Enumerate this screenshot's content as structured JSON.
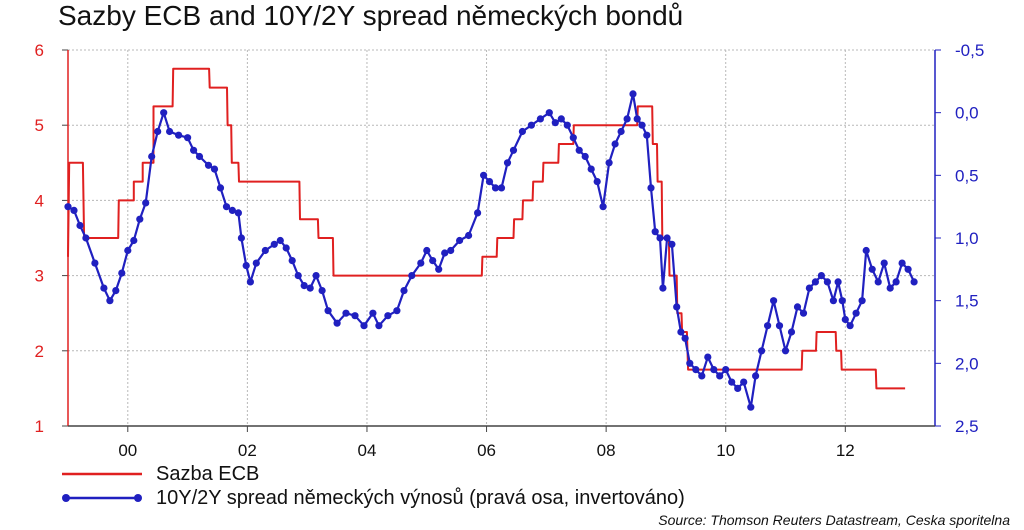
{
  "chart_data": {
    "type": "line",
    "title": "Sazby ECB and 10Y/2Y spread německých bondů",
    "source": "Source: Thomson Reuters Datastream, Ceska sporitelna",
    "x_ticks": [
      {
        "year": 2000,
        "label": "00"
      },
      {
        "year": 2002,
        "label": "02"
      },
      {
        "year": 2004,
        "label": "04"
      },
      {
        "year": 2006,
        "label": "06"
      },
      {
        "year": 2008,
        "label": "08"
      },
      {
        "year": 2010,
        "label": "10"
      },
      {
        "year": 2012,
        "label": "12"
      }
    ],
    "xlim": [
      1999.0,
      2013.5
    ],
    "left_axis": {
      "ticks": [
        "1",
        "2",
        "3",
        "4",
        "5",
        "6"
      ],
      "ylim": [
        1,
        6
      ],
      "color": "#e02020"
    },
    "right_axis": {
      "ticks": [
        "-0,5",
        "0,0",
        "0,5",
        "1,0",
        "1,5",
        "2,0",
        "2,5"
      ],
      "ylim": [
        -0.5,
        2.5
      ],
      "inverted": true,
      "color": "#2020c0"
    },
    "grid": true,
    "legend_position": "bottom",
    "series": [
      {
        "name": "Sazba ECB",
        "axis": "left",
        "color": "#e02020",
        "step": true,
        "points": [
          [
            1999.0,
            3.25
          ],
          [
            1999.02,
            4.5
          ],
          [
            1999.25,
            4.5
          ],
          [
            1999.27,
            3.5
          ],
          [
            1999.84,
            3.5
          ],
          [
            1999.85,
            4.0
          ],
          [
            2000.1,
            4.0
          ],
          [
            2000.1,
            4.25
          ],
          [
            2000.25,
            4.25
          ],
          [
            2000.25,
            4.5
          ],
          [
            2000.43,
            4.5
          ],
          [
            2000.43,
            5.25
          ],
          [
            2000.75,
            5.25
          ],
          [
            2000.76,
            5.75
          ],
          [
            2001.36,
            5.75
          ],
          [
            2001.37,
            5.5
          ],
          [
            2001.66,
            5.5
          ],
          [
            2001.67,
            5.0
          ],
          [
            2001.73,
            5.0
          ],
          [
            2001.74,
            4.5
          ],
          [
            2001.85,
            4.5
          ],
          [
            2001.86,
            4.25
          ],
          [
            2002.87,
            4.25
          ],
          [
            2002.88,
            3.75
          ],
          [
            2003.18,
            3.75
          ],
          [
            2003.19,
            3.5
          ],
          [
            2003.43,
            3.5
          ],
          [
            2003.44,
            3.0
          ],
          [
            2005.92,
            3.0
          ],
          [
            2005.93,
            3.25
          ],
          [
            2006.17,
            3.25
          ],
          [
            2006.18,
            3.5
          ],
          [
            2006.45,
            3.5
          ],
          [
            2006.46,
            3.75
          ],
          [
            2006.6,
            3.75
          ],
          [
            2006.61,
            4.0
          ],
          [
            2006.77,
            4.0
          ],
          [
            2006.78,
            4.25
          ],
          [
            2006.94,
            4.25
          ],
          [
            2006.95,
            4.5
          ],
          [
            2007.2,
            4.5
          ],
          [
            2007.21,
            4.75
          ],
          [
            2007.45,
            4.75
          ],
          [
            2007.46,
            5.0
          ],
          [
            2008.52,
            5.0
          ],
          [
            2008.53,
            5.25
          ],
          [
            2008.77,
            5.25
          ],
          [
            2008.78,
            4.75
          ],
          [
            2008.85,
            4.75
          ],
          [
            2008.86,
            4.25
          ],
          [
            2008.93,
            4.25
          ],
          [
            2008.94,
            3.5
          ],
          [
            2009.05,
            3.5
          ],
          [
            2009.06,
            3.0
          ],
          [
            2009.18,
            3.0
          ],
          [
            2009.19,
            2.5
          ],
          [
            2009.26,
            2.5
          ],
          [
            2009.27,
            2.25
          ],
          [
            2009.35,
            2.25
          ],
          [
            2009.36,
            2.0
          ],
          [
            2009.37,
            1.75
          ],
          [
            2011.27,
            1.75
          ],
          [
            2011.28,
            2.0
          ],
          [
            2011.51,
            2.0
          ],
          [
            2011.52,
            2.25
          ],
          [
            2011.84,
            2.25
          ],
          [
            2011.85,
            2.0
          ],
          [
            2011.93,
            2.0
          ],
          [
            2011.94,
            1.75
          ],
          [
            2012.51,
            1.75
          ],
          [
            2012.52,
            1.5
          ],
          [
            2013.0,
            1.5
          ]
        ]
      },
      {
        "name": "10Y/2Y spread německých výnosů (pravá osa, invertováno)",
        "axis": "right",
        "color": "#2020c0",
        "step": false,
        "points": [
          [
            1999.0,
            0.75
          ],
          [
            1999.1,
            0.78
          ],
          [
            1999.2,
            0.9
          ],
          [
            1999.3,
            1.0
          ],
          [
            1999.45,
            1.2
          ],
          [
            1999.6,
            1.4
          ],
          [
            1999.7,
            1.5
          ],
          [
            1999.8,
            1.42
          ],
          [
            1999.9,
            1.28
          ],
          [
            2000.0,
            1.1
          ],
          [
            2000.1,
            1.02
          ],
          [
            2000.2,
            0.85
          ],
          [
            2000.3,
            0.72
          ],
          [
            2000.4,
            0.35
          ],
          [
            2000.5,
            0.15
          ],
          [
            2000.6,
            0.0
          ],
          [
            2000.7,
            0.15
          ],
          [
            2000.85,
            0.18
          ],
          [
            2001.0,
            0.2
          ],
          [
            2001.1,
            0.3
          ],
          [
            2001.2,
            0.35
          ],
          [
            2001.35,
            0.42
          ],
          [
            2001.45,
            0.45
          ],
          [
            2001.55,
            0.6
          ],
          [
            2001.65,
            0.75
          ],
          [
            2001.75,
            0.78
          ],
          [
            2001.85,
            0.8
          ],
          [
            2001.9,
            1.0
          ],
          [
            2001.98,
            1.22
          ],
          [
            2002.05,
            1.35
          ],
          [
            2002.15,
            1.2
          ],
          [
            2002.3,
            1.1
          ],
          [
            2002.45,
            1.05
          ],
          [
            2002.55,
            1.02
          ],
          [
            2002.65,
            1.08
          ],
          [
            2002.75,
            1.18
          ],
          [
            2002.85,
            1.3
          ],
          [
            2002.95,
            1.38
          ],
          [
            2003.05,
            1.4
          ],
          [
            2003.15,
            1.3
          ],
          [
            2003.25,
            1.42
          ],
          [
            2003.35,
            1.58
          ],
          [
            2003.5,
            1.68
          ],
          [
            2003.65,
            1.6
          ],
          [
            2003.8,
            1.62
          ],
          [
            2003.95,
            1.7
          ],
          [
            2004.1,
            1.6
          ],
          [
            2004.2,
            1.7
          ],
          [
            2004.35,
            1.62
          ],
          [
            2004.5,
            1.58
          ],
          [
            2004.62,
            1.42
          ],
          [
            2004.75,
            1.3
          ],
          [
            2004.9,
            1.2
          ],
          [
            2005.0,
            1.1
          ],
          [
            2005.1,
            1.18
          ],
          [
            2005.2,
            1.25
          ],
          [
            2005.3,
            1.12
          ],
          [
            2005.4,
            1.1
          ],
          [
            2005.55,
            1.02
          ],
          [
            2005.7,
            0.98
          ],
          [
            2005.85,
            0.8
          ],
          [
            2005.95,
            0.5
          ],
          [
            2006.05,
            0.55
          ],
          [
            2006.15,
            0.6
          ],
          [
            2006.25,
            0.6
          ],
          [
            2006.35,
            0.4
          ],
          [
            2006.45,
            0.3
          ],
          [
            2006.6,
            0.15
          ],
          [
            2006.75,
            0.1
          ],
          [
            2006.9,
            0.05
          ],
          [
            2007.05,
            0.0
          ],
          [
            2007.15,
            0.08
          ],
          [
            2007.25,
            0.05
          ],
          [
            2007.35,
            0.1
          ],
          [
            2007.45,
            0.2
          ],
          [
            2007.55,
            0.3
          ],
          [
            2007.65,
            0.35
          ],
          [
            2007.75,
            0.45
          ],
          [
            2007.85,
            0.55
          ],
          [
            2007.95,
            0.75
          ],
          [
            2008.05,
            0.4
          ],
          [
            2008.15,
            0.25
          ],
          [
            2008.25,
            0.15
          ],
          [
            2008.35,
            0.05
          ],
          [
            2008.45,
            -0.15
          ],
          [
            2008.52,
            0.05
          ],
          [
            2008.6,
            0.1
          ],
          [
            2008.68,
            0.18
          ],
          [
            2008.75,
            0.6
          ],
          [
            2008.82,
            0.95
          ],
          [
            2008.9,
            1.0
          ],
          [
            2008.95,
            1.4
          ],
          [
            2009.02,
            1.0
          ],
          [
            2009.1,
            1.05
          ],
          [
            2009.18,
            1.55
          ],
          [
            2009.25,
            1.75
          ],
          [
            2009.32,
            1.8
          ],
          [
            2009.4,
            2.0
          ],
          [
            2009.5,
            2.05
          ],
          [
            2009.6,
            2.1
          ],
          [
            2009.7,
            1.95
          ],
          [
            2009.8,
            2.05
          ],
          [
            2009.9,
            2.1
          ],
          [
            2010.0,
            2.05
          ],
          [
            2010.1,
            2.15
          ],
          [
            2010.2,
            2.2
          ],
          [
            2010.3,
            2.15
          ],
          [
            2010.42,
            2.35
          ],
          [
            2010.5,
            2.1
          ],
          [
            2010.6,
            1.9
          ],
          [
            2010.7,
            1.7
          ],
          [
            2010.8,
            1.5
          ],
          [
            2010.9,
            1.7
          ],
          [
            2011.0,
            1.9
          ],
          [
            2011.1,
            1.75
          ],
          [
            2011.2,
            1.55
          ],
          [
            2011.3,
            1.6
          ],
          [
            2011.4,
            1.4
          ],
          [
            2011.5,
            1.35
          ],
          [
            2011.6,
            1.3
          ],
          [
            2011.7,
            1.35
          ],
          [
            2011.8,
            1.5
          ],
          [
            2011.88,
            1.35
          ],
          [
            2011.95,
            1.5
          ],
          [
            2012.0,
            1.65
          ],
          [
            2012.08,
            1.7
          ],
          [
            2012.18,
            1.6
          ],
          [
            2012.28,
            1.5
          ],
          [
            2012.35,
            1.1
          ],
          [
            2012.45,
            1.25
          ],
          [
            2012.55,
            1.35
          ],
          [
            2012.65,
            1.2
          ],
          [
            2012.75,
            1.4
          ],
          [
            2012.85,
            1.35
          ],
          [
            2012.95,
            1.2
          ],
          [
            2013.05,
            1.25
          ],
          [
            2013.15,
            1.35
          ]
        ]
      }
    ]
  }
}
